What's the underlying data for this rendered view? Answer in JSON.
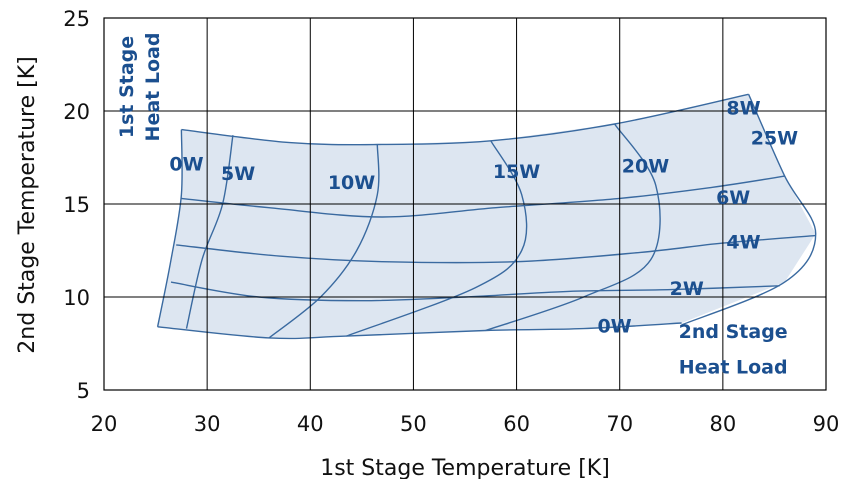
{
  "chart_data": {
    "type": "line",
    "title": "",
    "xlabel": "1st Stage Temperature [K]",
    "ylabel": "2nd Stage Temperature [K]",
    "xlim": [
      20,
      90
    ],
    "ylim": [
      5,
      25
    ],
    "xticks": [
      20,
      30,
      40,
      50,
      60,
      70,
      80,
      90
    ],
    "yticks": [
      5,
      10,
      15,
      20,
      25
    ],
    "grid": true,
    "colors": {
      "fill": "#dde6f1",
      "line": "#3a6aa0",
      "label": "#1b4f8f",
      "grid": "#000000"
    },
    "annotations": {
      "first_stage_title": [
        "1st Stage",
        "Heat Load"
      ],
      "second_stage_title": [
        "2nd Stage",
        "Heat Load"
      ]
    },
    "first_stage_load_curves": [
      {
        "name": "0W",
        "points": [
          [
            27.5,
            19.0
          ],
          [
            27.5,
            15.5
          ],
          [
            26.5,
            12.0
          ],
          [
            25.2,
            8.4
          ]
        ]
      },
      {
        "name": "5W",
        "points": [
          [
            32.5,
            18.7
          ],
          [
            31.5,
            15.0
          ],
          [
            29.5,
            12.0
          ],
          [
            28,
            8.3
          ]
        ]
      },
      {
        "name": "10W",
        "points": [
          [
            46.5,
            18.2
          ],
          [
            46.5,
            15.5
          ],
          [
            44.5,
            12.5
          ],
          [
            41,
            10
          ],
          [
            36,
            7.8
          ]
        ]
      },
      {
        "name": "15W",
        "points": [
          [
            57.5,
            18.4
          ],
          [
            60.5,
            15.5
          ],
          [
            60.5,
            12.5
          ],
          [
            56,
            10.5
          ],
          [
            43.5,
            7.9
          ]
        ]
      },
      {
        "name": "20W",
        "points": [
          [
            69.5,
            19.3
          ],
          [
            73.5,
            16.0
          ],
          [
            73,
            12.0
          ],
          [
            66.5,
            10.0
          ],
          [
            57,
            8.2
          ]
        ]
      },
      {
        "name": "25W",
        "points": [
          [
            82.5,
            20.9
          ],
          [
            86,
            16.5
          ],
          [
            89,
            13.4
          ],
          [
            86,
            10.8
          ],
          [
            76,
            8.5
          ]
        ]
      }
    ],
    "second_stage_load_curves": [
      {
        "name": "0W",
        "points": [
          [
            25.2,
            8.4
          ],
          [
            36,
            7.8
          ],
          [
            43.5,
            7.9
          ],
          [
            57,
            8.2
          ],
          [
            66.5,
            8.3
          ],
          [
            76,
            8.6
          ]
        ]
      },
      {
        "name": "2W",
        "points": [
          [
            26.5,
            10.8
          ],
          [
            35,
            10.0
          ],
          [
            45,
            9.8
          ],
          [
            55,
            10.0
          ],
          [
            65,
            10.3
          ],
          [
            75,
            10.4
          ],
          [
            85.5,
            10.6
          ]
        ]
      },
      {
        "name": "4W",
        "points": [
          [
            27,
            12.8
          ],
          [
            37,
            12.2
          ],
          [
            47,
            11.9
          ],
          [
            60,
            11.9
          ],
          [
            72,
            12.4
          ],
          [
            80,
            12.9
          ],
          [
            89,
            13.3
          ]
        ]
      },
      {
        "name": "6W",
        "points": [
          [
            27.5,
            15.3
          ],
          [
            36,
            14.8
          ],
          [
            47,
            14.3
          ],
          [
            58,
            14.8
          ],
          [
            70,
            15.3
          ],
          [
            79,
            15.9
          ],
          [
            86,
            16.5
          ]
        ]
      },
      {
        "name": "8W",
        "points": [
          [
            27.5,
            19.0
          ],
          [
            38,
            18.3
          ],
          [
            46.5,
            18.2
          ],
          [
            57.5,
            18.4
          ],
          [
            69.5,
            19.3
          ],
          [
            82.5,
            20.9
          ]
        ]
      }
    ],
    "first_stage_labels": [
      {
        "text": "0W",
        "x": 28.0,
        "y": 16.8
      },
      {
        "text": "5W",
        "x": 33.0,
        "y": 16.3
      },
      {
        "text": "10W",
        "x": 44.0,
        "y": 15.8
      },
      {
        "text": "15W",
        "x": 60.0,
        "y": 16.4
      },
      {
        "text": "20W",
        "x": 72.5,
        "y": 16.7
      },
      {
        "text": "25W",
        "x": 85.0,
        "y": 18.2
      }
    ],
    "second_stage_labels": [
      {
        "text": "8W",
        "x": 82.0,
        "y": 19.8
      },
      {
        "text": "6W",
        "x": 81.0,
        "y": 15.0
      },
      {
        "text": "4W",
        "x": 82.0,
        "y": 12.6
      },
      {
        "text": "2W",
        "x": 76.5,
        "y": 10.1
      },
      {
        "text": "0W",
        "x": 69.5,
        "y": 8.1
      }
    ]
  }
}
